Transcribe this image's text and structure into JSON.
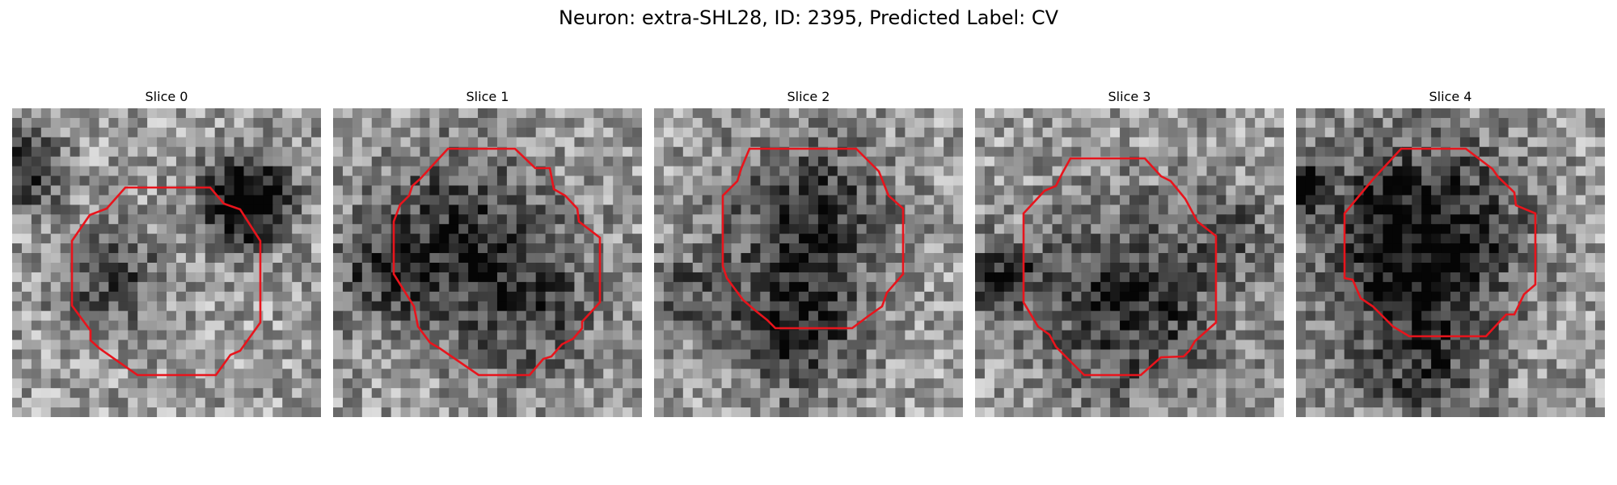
{
  "figure": {
    "title": "Neuron: extra-SHL28, ID: 2395, Predicted Label: CV"
  },
  "style": {
    "contour_color": "#e8141c",
    "background": "#ffffff"
  },
  "slices": [
    {
      "label": "Slice 0"
    },
    {
      "label": "Slice 1"
    },
    {
      "label": "Slice 2"
    },
    {
      "label": "Slice 3"
    },
    {
      "label": "Slice 4"
    }
  ]
}
